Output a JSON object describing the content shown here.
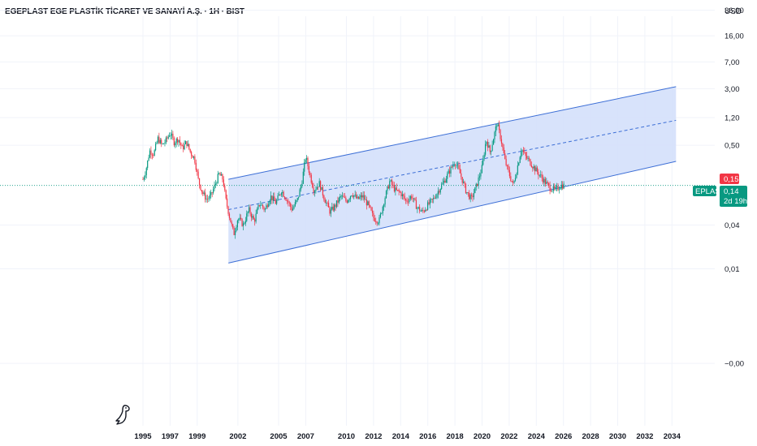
{
  "header": {
    "title": "EGEPLAST EGE PLASTİK TİCARET VE SANAYİ A.Ş. · 1H · BIST",
    "currency": "USD"
  },
  "colors": {
    "channel_fill": "#d4e0fb",
    "channel_line": "#3d6fd6",
    "candle_up": "#089981",
    "candle_down": "#f23645",
    "price_line": "#089981",
    "grid": "#f0f3fa"
  },
  "icons": {
    "logo": "tradingview-dino-icon"
  },
  "chart_data": {
    "type": "candlestick",
    "title": "EGEPLAST EGE PLASTİK TİCARET VE SANAYİ A.Ş. · 1H · BIST",
    "symbol": "EPLAS",
    "y_scale": "log",
    "y_tick_labels": [
      "36,00",
      "16,00",
      "7,00",
      "3,00",
      "1,20",
      "0,50",
      "0,04",
      "0,01",
      "−0,00"
    ],
    "y_tick_values": [
      36,
      16,
      7,
      3,
      1.2,
      0.5,
      0.04,
      0.01,
      0.0005
    ],
    "x_tick_labels": [
      "1995",
      "1997",
      "1999",
      "2002",
      "2005",
      "2007",
      "2010",
      "2012",
      "2014",
      "2016",
      "2018",
      "2020",
      "2022",
      "2024",
      "2026",
      "2028",
      "2030",
      "2032",
      "2034"
    ],
    "x_tick_years": [
      1995,
      1997,
      1999,
      2002,
      2005,
      2007,
      2010,
      2012,
      2014,
      2016,
      2018,
      2020,
      2022,
      2024,
      2026,
      2028,
      2030,
      2032,
      2034
    ],
    "x_range": [
      1994,
      2035.5
    ],
    "price_series": [
      [
        1995.0,
        0.17
      ],
      [
        1995.2,
        0.22
      ],
      [
        1995.5,
        0.42
      ],
      [
        1995.8,
        0.38
      ],
      [
        1996.1,
        0.62
      ],
      [
        1996.4,
        0.5
      ],
      [
        1996.7,
        0.58
      ],
      [
        1997.0,
        0.74
      ],
      [
        1997.3,
        0.55
      ],
      [
        1997.6,
        0.62
      ],
      [
        1997.9,
        0.45
      ],
      [
        1998.2,
        0.55
      ],
      [
        1998.5,
        0.4
      ],
      [
        1998.8,
        0.33
      ],
      [
        1999.1,
        0.16
      ],
      [
        1999.4,
        0.11
      ],
      [
        1999.7,
        0.09
      ],
      [
        2000.0,
        0.1
      ],
      [
        2000.3,
        0.14
      ],
      [
        2000.6,
        0.2
      ],
      [
        2000.9,
        0.17
      ],
      [
        2001.1,
        0.09
      ],
      [
        2001.4,
        0.05
      ],
      [
        2001.7,
        0.03
      ],
      [
        2002.0,
        0.05
      ],
      [
        2002.4,
        0.04
      ],
      [
        2002.8,
        0.065
      ],
      [
        2003.2,
        0.045
      ],
      [
        2003.6,
        0.08
      ],
      [
        2004.0,
        0.065
      ],
      [
        2004.4,
        0.1
      ],
      [
        2004.8,
        0.08
      ],
      [
        2005.2,
        0.12
      ],
      [
        2005.6,
        0.09
      ],
      [
        2006.0,
        0.065
      ],
      [
        2006.4,
        0.09
      ],
      [
        2006.7,
        0.15
      ],
      [
        2007.0,
        0.35
      ],
      [
        2007.3,
        0.2
      ],
      [
        2007.6,
        0.12
      ],
      [
        2008.0,
        0.15
      ],
      [
        2008.4,
        0.09
      ],
      [
        2008.8,
        0.06
      ],
      [
        2009.2,
        0.075
      ],
      [
        2009.6,
        0.1
      ],
      [
        2010.0,
        0.085
      ],
      [
        2010.4,
        0.11
      ],
      [
        2010.8,
        0.09
      ],
      [
        2011.2,
        0.1
      ],
      [
        2011.6,
        0.075
      ],
      [
        2012.0,
        0.05
      ],
      [
        2012.4,
        0.045
      ],
      [
        2012.8,
        0.09
      ],
      [
        2013.2,
        0.16
      ],
      [
        2013.6,
        0.12
      ],
      [
        2014.0,
        0.11
      ],
      [
        2014.4,
        0.085
      ],
      [
        2014.8,
        0.1
      ],
      [
        2015.2,
        0.07
      ],
      [
        2015.6,
        0.06
      ],
      [
        2016.0,
        0.075
      ],
      [
        2016.4,
        0.09
      ],
      [
        2016.8,
        0.12
      ],
      [
        2017.2,
        0.16
      ],
      [
        2017.6,
        0.22
      ],
      [
        2018.0,
        0.3
      ],
      [
        2018.4,
        0.2
      ],
      [
        2018.8,
        0.12
      ],
      [
        2019.2,
        0.09
      ],
      [
        2019.6,
        0.14
      ],
      [
        2020.0,
        0.25
      ],
      [
        2020.3,
        0.6
      ],
      [
        2020.6,
        0.4
      ],
      [
        2020.9,
        0.7
      ],
      [
        2021.1,
        1.0
      ],
      [
        2021.4,
        0.6
      ],
      [
        2021.7,
        0.3
      ],
      [
        2022.0,
        0.2
      ],
      [
        2022.3,
        0.14
      ],
      [
        2022.6,
        0.25
      ],
      [
        2022.9,
        0.45
      ],
      [
        2023.2,
        0.35
      ],
      [
        2023.5,
        0.3
      ],
      [
        2023.8,
        0.25
      ],
      [
        2024.2,
        0.2
      ],
      [
        2024.6,
        0.16
      ],
      [
        2025.0,
        0.13
      ],
      [
        2025.4,
        0.12
      ],
      [
        2025.8,
        0.14
      ],
      [
        2026.1,
        0.14
      ]
    ],
    "channel": {
      "upper": [
        [
          2001.3,
          0.17
        ],
        [
          2034.3,
          3.2
        ]
      ],
      "middle": [
        [
          2001.3,
          0.065
        ],
        [
          2034.3,
          1.1
        ]
      ],
      "lower": [
        [
          2001.3,
          0.012
        ],
        [
          2034.3,
          0.3
        ]
      ]
    },
    "current_price": 0.14,
    "price_badges": {
      "high": "0,15",
      "last": "0,14",
      "countdown": "2d 19h",
      "symbol": "EPLAS"
    }
  }
}
